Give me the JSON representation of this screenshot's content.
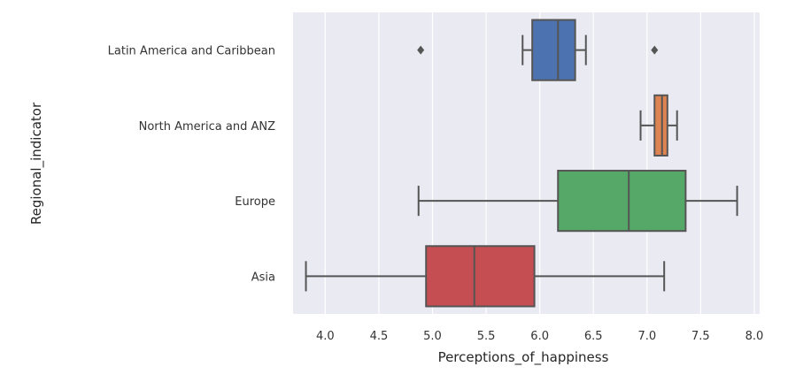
{
  "chart_data": {
    "type": "boxplot",
    "orientation": "horizontal",
    "title": "",
    "xlabel": "Perceptions_of_happiness",
    "ylabel": "Regional_indicator",
    "xlim": [
      3.7,
      8.05
    ],
    "xticks": [
      "4.0",
      "4.5",
      "5.0",
      "5.5",
      "6.0",
      "6.5",
      "7.0",
      "7.5",
      "8.0"
    ],
    "grid": true,
    "categories": [
      "Latin America and Caribbean",
      "North America and ANZ",
      "Europe",
      "Asia"
    ],
    "series": [
      {
        "category": "Latin America and Caribbean",
        "whisker_low": 5.84,
        "q1": 5.93,
        "median": 6.17,
        "q3": 6.33,
        "whisker_high": 6.43,
        "outliers": [
          4.89,
          7.07
        ],
        "color": "#4c72b0"
      },
      {
        "category": "North America and ANZ",
        "whisker_low": 6.94,
        "q1": 7.07,
        "median": 7.14,
        "q3": 7.19,
        "whisker_high": 7.28,
        "outliers": [],
        "color": "#dd8452"
      },
      {
        "category": "Europe",
        "whisker_low": 4.87,
        "q1": 6.17,
        "median": 6.83,
        "q3": 7.36,
        "whisker_high": 7.84,
        "outliers": [],
        "color": "#55a868"
      },
      {
        "category": "Asia",
        "whisker_low": 3.82,
        "q1": 4.94,
        "median": 5.39,
        "q3": 5.95,
        "whisker_high": 7.16,
        "outliers": [],
        "color": "#c44e52"
      }
    ]
  }
}
